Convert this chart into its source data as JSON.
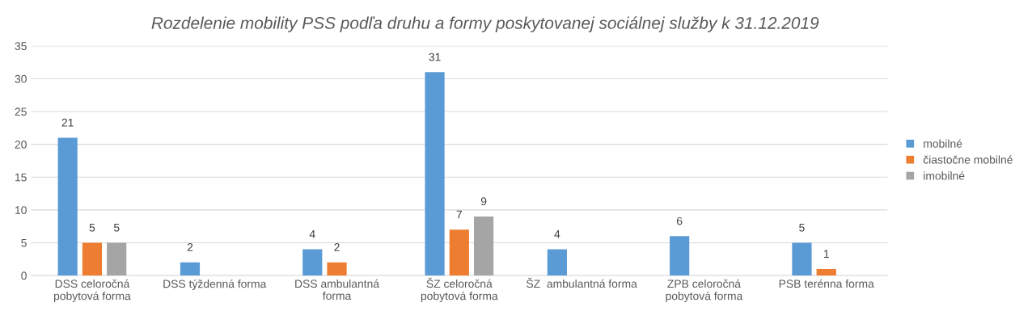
{
  "chart_data": {
    "type": "bar",
    "title": "Rozdelenie mobility PSS podľa druhu a formy poskytovanej sociálnej služby k 31.12.2019",
    "categories": [
      "DSS celoročná pobytová forma",
      "DSS týždenná forma",
      "DSS ambulantná forma",
      "ŠZ celoročná pobytová forma",
      "ŠZ  ambulantná forma",
      "ZPB celoročná pobytová forma",
      "PSB terénna forma"
    ],
    "series": [
      {
        "name": "mobilné",
        "color": "#5b9bd5",
        "values": [
          21,
          2,
          4,
          31,
          4,
          6,
          5
        ]
      },
      {
        "name": "čiastočne mobilné",
        "color": "#ed7d31",
        "values": [
          5,
          null,
          2,
          7,
          null,
          null,
          1
        ]
      },
      {
        "name": "imobilné",
        "color": "#a5a5a5",
        "values": [
          5,
          null,
          null,
          9,
          null,
          null,
          null
        ]
      }
    ],
    "ylim": [
      0,
      35
    ],
    "yticks": [
      0,
      5,
      10,
      15,
      20,
      25,
      30,
      35
    ],
    "grid": "y",
    "legend": "right",
    "data_labels": true
  }
}
